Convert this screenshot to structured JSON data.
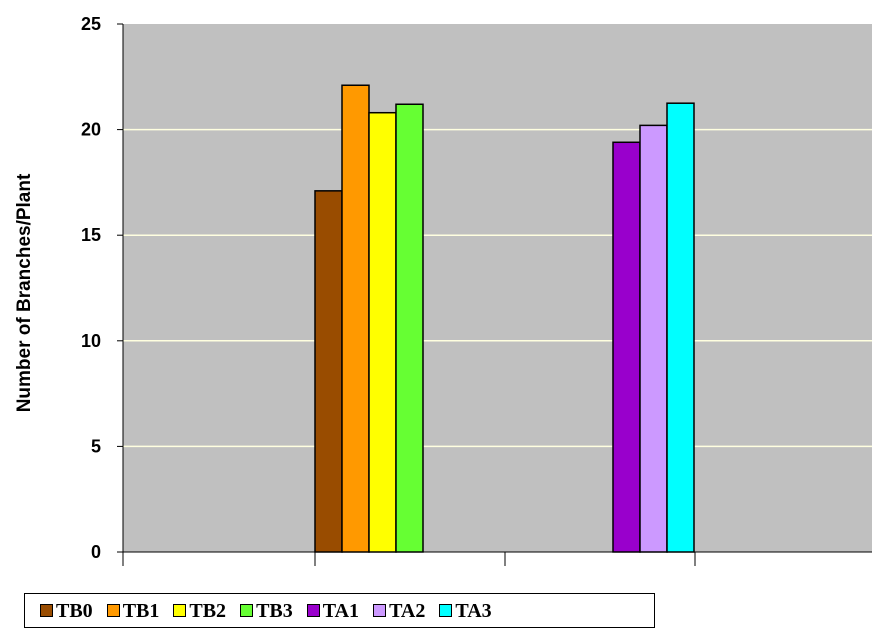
{
  "chart_data": {
    "type": "bar",
    "ylabel": "Number of Branches/Plant",
    "xlabel": "",
    "ylim": [
      0,
      25
    ],
    "yticks": [
      0,
      5,
      10,
      15,
      20,
      25
    ],
    "grid": true,
    "legend_position": "bottom",
    "plot_background": "#c0c0c0",
    "gridline_color": "#ffffe0",
    "series": [
      {
        "name": "TB0",
        "color": "#994c00",
        "values": [
          17.1
        ]
      },
      {
        "name": "TB1",
        "color": "#ff9900",
        "values": [
          22.1
        ]
      },
      {
        "name": "TB2",
        "color": "#ffff00",
        "values": [
          20.8
        ]
      },
      {
        "name": "TB3",
        "color": "#66ff33",
        "values": [
          21.2
        ]
      },
      {
        "name": "TA1",
        "color": "#9900cc",
        "values": [
          19.4
        ]
      },
      {
        "name": "TA2",
        "color": "#cc99ff",
        "values": [
          20.2
        ]
      },
      {
        "name": "TA3",
        "color": "#00ffff",
        "values": [
          21.25
        ]
      }
    ]
  }
}
